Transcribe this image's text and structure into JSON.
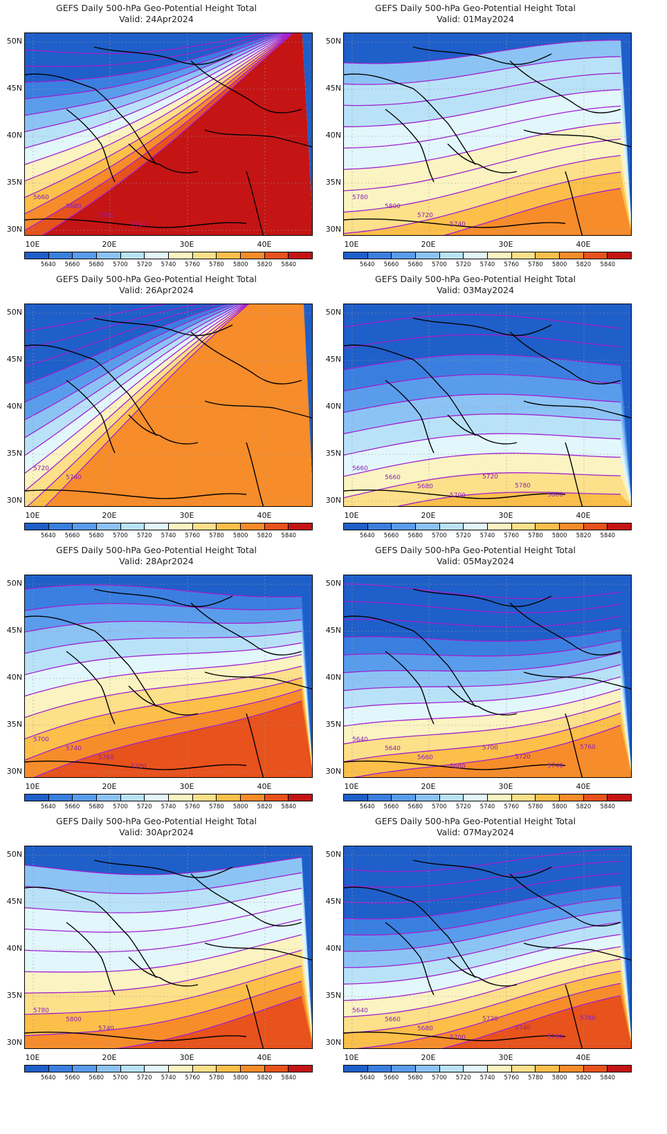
{
  "title": "GEFS Daily 500-hPa Geo-Potential Height Total",
  "panels": [
    {
      "valid": "Valid: 24Apr2024",
      "labels": [
        "5660",
        "5680",
        "5700",
        "5720"
      ]
    },
    {
      "valid": "Valid: 01May2024",
      "labels": [
        "5780",
        "5800",
        "5720",
        "5740"
      ]
    },
    {
      "valid": "Valid: 26Apr2024",
      "labels": [
        "5720",
        "5740"
      ]
    },
    {
      "valid": "Valid: 03May2024",
      "labels": [
        "5660",
        "5660",
        "5680",
        "5700",
        "5720",
        "5780",
        "5800"
      ]
    },
    {
      "valid": "Valid: 28Apr2024",
      "labels": [
        "5700",
        "5740",
        "5760",
        "5780"
      ]
    },
    {
      "valid": "Valid: 05May2024",
      "labels": [
        "5640",
        "5640",
        "5660",
        "5680",
        "5700",
        "5720",
        "5740",
        "5760"
      ]
    },
    {
      "valid": "Valid: 30Apr2024",
      "labels": [
        "5780",
        "5800",
        "5740"
      ]
    },
    {
      "valid": "Valid: 07May2024",
      "labels": [
        "5640",
        "5660",
        "5680",
        "5700",
        "5720",
        "5740",
        "5760",
        "5780"
      ]
    }
  ],
  "lat_labels": [
    "50N",
    "45N",
    "40N",
    "35N",
    "30N"
  ],
  "lon_labels": [
    "10E",
    "20E",
    "30E",
    "40E"
  ],
  "colorbar": {
    "labels": [
      "5640",
      "5660",
      "5680",
      "5700",
      "5720",
      "5740",
      "5760",
      "5780",
      "5800",
      "5820",
      "5840"
    ],
    "colors": [
      "#1f5fc9",
      "#3a7fe0",
      "#5a9cec",
      "#8cc3f5",
      "#b9e2f8",
      "#e2f7fb",
      "#fbf4c2",
      "#fde08a",
      "#fbbf4a",
      "#f78c2a",
      "#e8521c",
      "#c41414"
    ]
  },
  "contour_color": "#a020d0"
}
